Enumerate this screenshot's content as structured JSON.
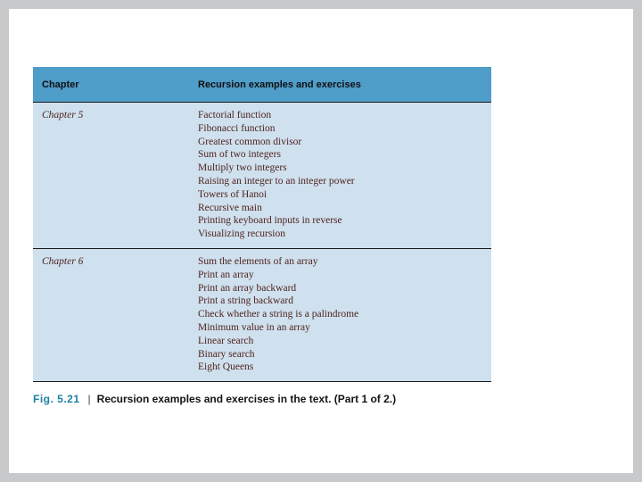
{
  "table": {
    "header": {
      "col1": "Chapter",
      "col2": "Recursion examples and exercises"
    },
    "rows": [
      {
        "chapter": "Chapter 5",
        "items": [
          "Factorial function",
          "Fibonacci function",
          "Greatest common divisor",
          "Sum of two integers",
          "Multiply two integers",
          "Raising an integer to an integer power",
          "Towers of Hanoi",
          "Recursive main",
          "Printing keyboard inputs in reverse",
          "Visualizing recursion"
        ]
      },
      {
        "chapter": "Chapter 6",
        "items": [
          "Sum the elements of an array",
          "Print an array",
          "Print an array backward",
          "Print a string backward",
          "Check whether a string is a palindrome",
          "Minimum value in an array",
          "Linear search",
          "Binary search",
          "Eight Queens"
        ]
      }
    ]
  },
  "caption": {
    "fig_label": "Fig. 5.21",
    "separator": "|",
    "text": "Recursion examples and exercises in the text. (Part 1 of 2.)"
  },
  "colors": {
    "header_bg": "#4f9dc9",
    "body_bg": "#cfe0ee",
    "item_color": "#4f241f",
    "fig_label_color": "#1d7fa3",
    "rule_color": "#1a1a1a"
  }
}
